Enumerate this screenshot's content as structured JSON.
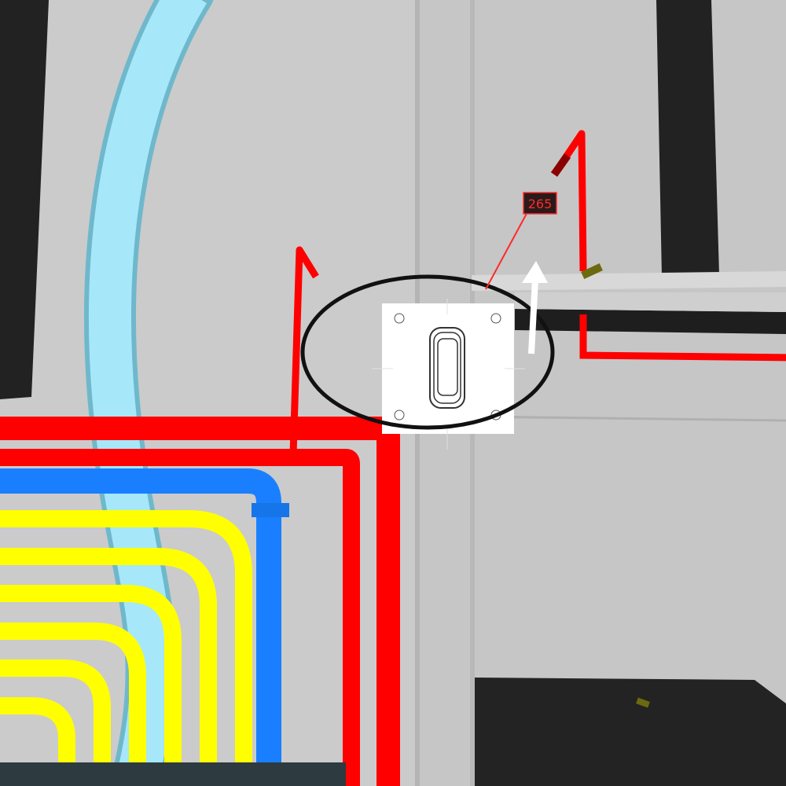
{
  "viewport": {
    "background_color": "#c9c9c9",
    "wall_color": "#cdcdcd",
    "dark_panel_color": "#222222"
  },
  "annotation": {
    "dimension_value": "265",
    "dimension_color": "#ff2a2a",
    "highlight_ring_color": "#111111",
    "direction_arrow_color": "#ffffff"
  },
  "switch_plate": {
    "plate_color": "#ffffff",
    "outline_color": "#333333"
  },
  "pipes": {
    "red": "#ff0000",
    "blue": "#1a7fff",
    "yellow": "#ffff00",
    "light_blue": "#99e3f7",
    "dark_red": "#8a0000"
  }
}
